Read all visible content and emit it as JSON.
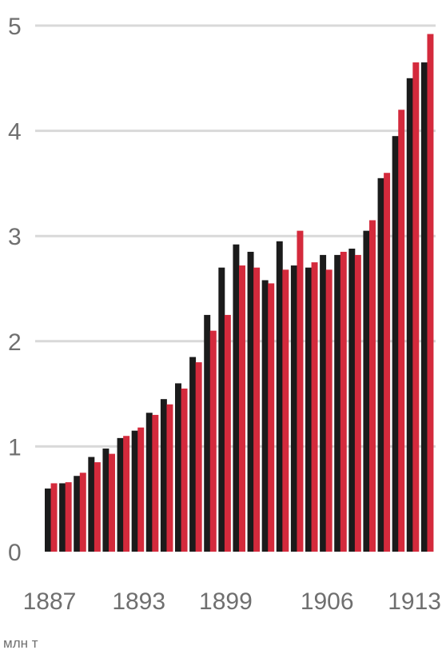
{
  "header": {
    "cropped_title": ""
  },
  "unit_label": "млн т",
  "colors": {
    "dark": "#1b1b1b",
    "red": "#d42a3c",
    "grid": "#d9d9d9",
    "text": "#6f6f6f"
  },
  "chart_data": {
    "type": "bar",
    "categories": [
      "1887",
      "1888",
      "1889",
      "1890",
      "1891",
      "1892",
      "1893",
      "1894",
      "1895",
      "1896",
      "1897",
      "1898",
      "1899",
      "1900",
      "1901",
      "1902",
      "1903",
      "1904",
      "1905",
      "1906",
      "1907",
      "1908",
      "1909",
      "1910",
      "1911",
      "1912",
      "1913"
    ],
    "x_tick_labels": [
      "1887",
      "1893",
      "1899",
      "1906",
      "1913"
    ],
    "series": [
      {
        "name": "",
        "color": "#1b1b1b",
        "values": [
          0.6,
          0.65,
          0.72,
          0.9,
          0.98,
          1.08,
          1.15,
          1.32,
          1.45,
          1.6,
          1.85,
          2.25,
          2.7,
          2.92,
          2.85,
          2.58,
          2.95,
          2.72,
          2.7,
          2.82,
          2.82,
          2.88,
          3.05,
          3.55,
          3.95,
          4.5,
          4.65
        ]
      },
      {
        "name": "",
        "color": "#d42a3c",
        "values": [
          0.65,
          0.66,
          0.75,
          0.85,
          0.93,
          1.1,
          1.18,
          1.3,
          1.4,
          1.55,
          1.8,
          2.1,
          2.25,
          2.72,
          2.7,
          2.55,
          2.68,
          3.05,
          2.75,
          2.68,
          2.85,
          2.82,
          3.15,
          3.6,
          4.2,
          4.65,
          4.92
        ]
      }
    ],
    "yticks": [
      0,
      1,
      2,
      3,
      4,
      5
    ],
    "ylim": [
      0,
      5
    ],
    "title": "",
    "xlabel": "",
    "ylabel": "",
    "grid": true
  }
}
